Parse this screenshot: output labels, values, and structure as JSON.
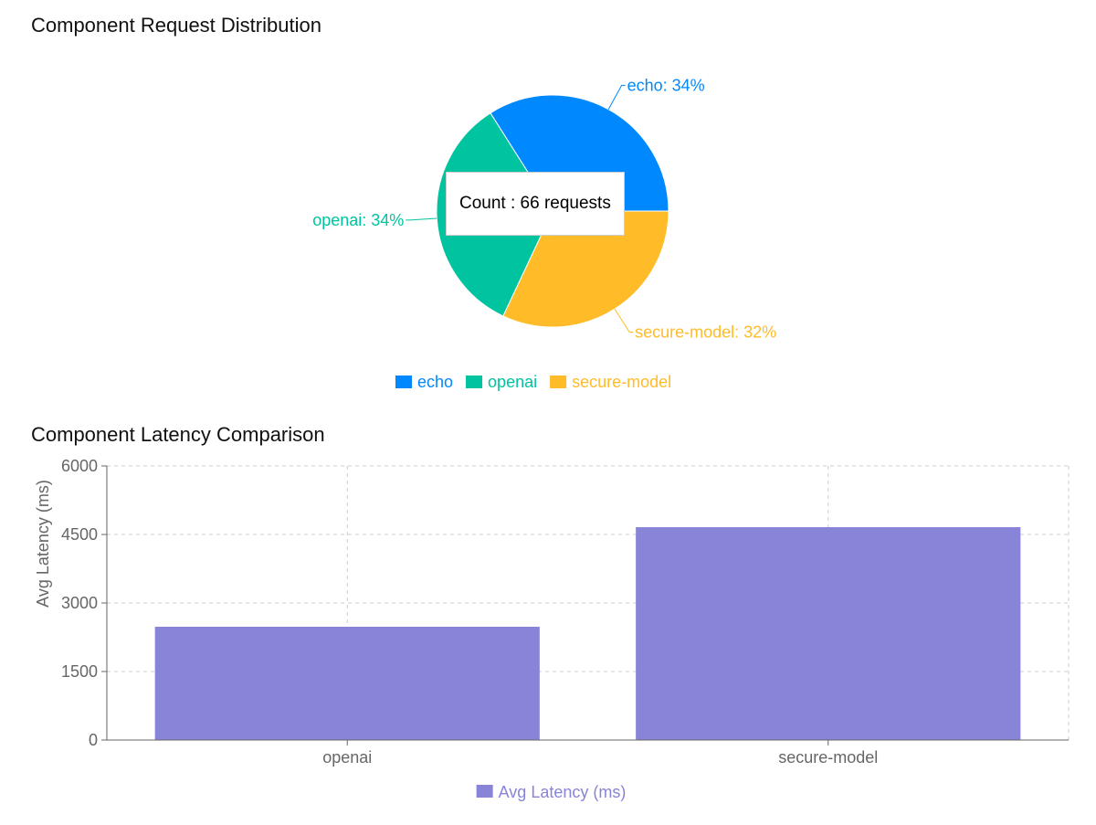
{
  "chart_data": [
    {
      "type": "pie",
      "title": "Component Request Distribution",
      "slices": [
        {
          "name": "echo",
          "percent": 34,
          "label": "echo: 34%",
          "color": "#0088fe"
        },
        {
          "name": "openai",
          "percent": 34,
          "label": "openai: 34%",
          "color": "#00c49f"
        },
        {
          "name": "secure-model",
          "percent": 32,
          "label": "secure-model: 32%",
          "color": "#ffbb28"
        }
      ],
      "legend": [
        "echo",
        "openai",
        "secure-model"
      ],
      "legend_position": "bottom",
      "tooltip": {
        "text": "Count : 66 requests"
      }
    },
    {
      "type": "bar",
      "title": "Component Latency Comparison",
      "categories": [
        "openai",
        "secure-model"
      ],
      "series": [
        {
          "name": "Avg Latency (ms)",
          "values": [
            2480,
            4660
          ],
          "color": "#8884d8"
        }
      ],
      "ylabel": "Avg Latency (ms)",
      "xlabel": "",
      "ylim": [
        0,
        6000
      ],
      "yticks": [
        "0",
        "1500",
        "3000",
        "4500",
        "6000"
      ],
      "grid": true,
      "legend": [
        "Avg Latency (ms)"
      ],
      "legend_position": "bottom"
    }
  ]
}
